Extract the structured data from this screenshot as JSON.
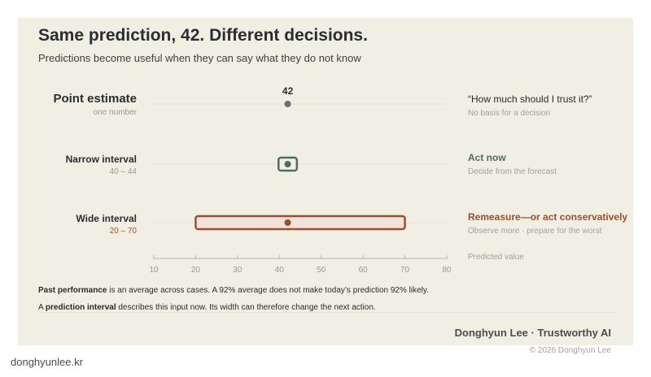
{
  "title": "Same prediction, 42. Different decisions.",
  "subtitle": "Predictions become useful when they can say what they do not know",
  "rows": [
    {
      "label": "Point estimate",
      "sublabel": "one number",
      "value": 42,
      "value_label": "42",
      "question": "“How much should I trust it?”",
      "outcome": "No basis for a decision"
    },
    {
      "label": "Narrow interval",
      "sublabel": "40 – 44",
      "value": 42,
      "low": 40,
      "high": 44,
      "action": "Act now",
      "outcome": "Decide from the forecast"
    },
    {
      "label": "Wide interval",
      "sublabel": "20 – 70",
      "value": 42,
      "low": 20,
      "high": 70,
      "action": "Remeasure—or act conservatively",
      "outcome": "Observe more · prepare for the worst"
    }
  ],
  "axis": {
    "min": 10,
    "max": 80,
    "ticks": [
      10,
      20,
      30,
      40,
      50,
      60,
      70,
      80
    ],
    "tick_labels": [
      "10",
      "20",
      "30",
      "40",
      "50",
      "60",
      "70",
      "80"
    ],
    "title": "Predicted value"
  },
  "notes": {
    "n1_strong": "Past performance",
    "n1_rest": " is an average across cases. A 92% average does not make today’s prediction 92% likely.",
    "n2_pre": "A ",
    "n2_strong": "prediction interval",
    "n2_rest": " describes this input now. Its width can therefore change the next action."
  },
  "footer": {
    "author": "Donghyun Lee · Trustworthy AI",
    "copyright": "© 2026 Donghyun Lee",
    "site": "donghyunlee.kr"
  },
  "colors": {
    "background": "#f1eee4",
    "point": "#6b6e72",
    "narrow": "#4e6e5d",
    "wide": "#9c4f2e",
    "wide_fill": "#f2e2dc"
  }
}
